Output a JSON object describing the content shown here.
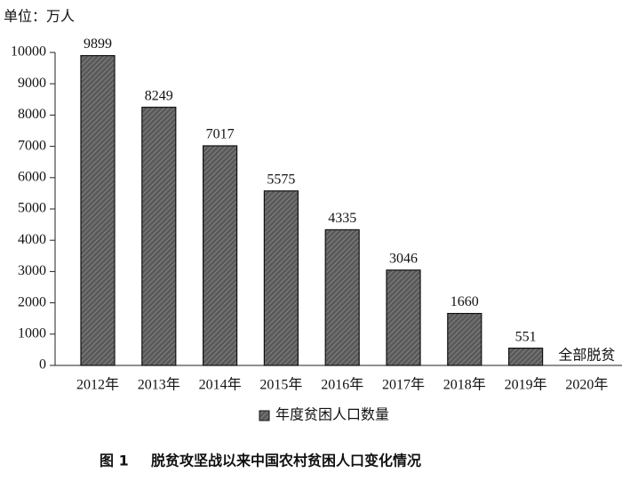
{
  "chart_data": {
    "type": "bar",
    "y_label": "单位：万人",
    "categories": [
      "2012年",
      "2013年",
      "2014年",
      "2015年",
      "2016年",
      "2017年",
      "2018年",
      "2019年",
      "2020年"
    ],
    "series": [
      {
        "name": "年度贫困人口数量",
        "color": "#5a5a5a",
        "values": [
          9899,
          8249,
          7017,
          5575,
          4335,
          3046,
          1660,
          551,
          null
        ]
      }
    ],
    "annotation": "全部脱贫",
    "ylim": [
      0,
      10000
    ],
    "yticks": [
      0,
      1000,
      2000,
      3000,
      4000,
      5000,
      6000,
      7000,
      8000,
      9000,
      10000
    ],
    "grid": false,
    "caption": {
      "figure": "图 1",
      "title": "脱贫攻坚战以来中国农村贫困人口变化情况"
    }
  }
}
